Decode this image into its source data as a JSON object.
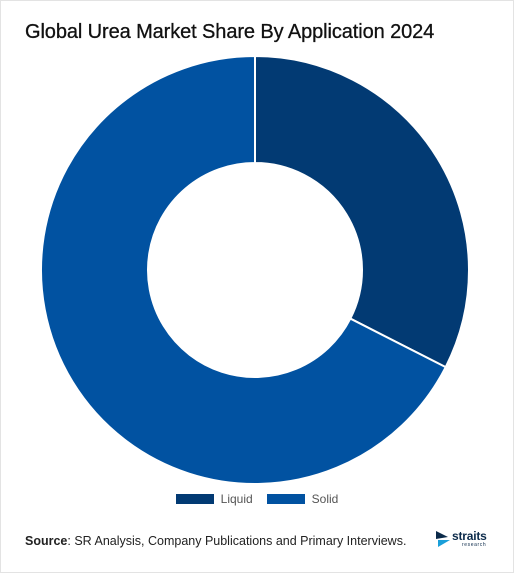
{
  "chart_data": {
    "type": "pie",
    "style": "donut",
    "title": "Global Urea Market Share By Application 2024",
    "categories": [
      "Liquid",
      "Solid"
    ],
    "values": [
      32.5,
      67.5
    ],
    "colors": [
      "#023a73",
      "#0152a1"
    ],
    "legend_position": "bottom"
  },
  "source": {
    "label": "Source",
    "text": ": SR Analysis, Company Publications and Primary Interviews."
  },
  "logo": {
    "name": "straits",
    "subtitle": "research"
  }
}
